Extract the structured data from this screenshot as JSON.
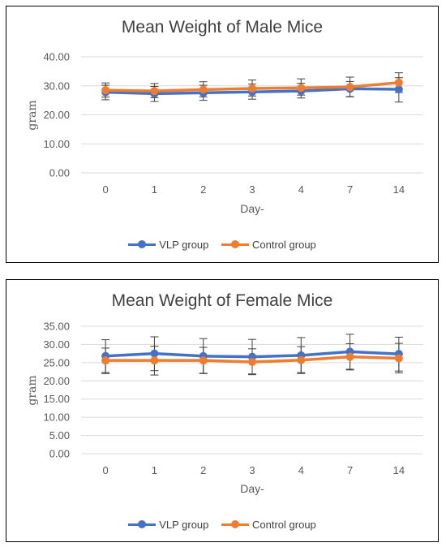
{
  "colors": {
    "vlp": "#4472c4",
    "control": "#ed7d31",
    "grid": "#d9d9d9",
    "text": "#595959",
    "error_bar": "#404040"
  },
  "chart_data": [
    {
      "type": "line",
      "title": "Mean Weight of Male Mice",
      "xlabel": "Day-",
      "ylabel": "gram",
      "categories": [
        "0",
        "1",
        "2",
        "3",
        "4",
        "7",
        "14"
      ],
      "ylim": [
        0,
        40
      ],
      "yticks": [
        "0.00",
        "10.00",
        "20.00",
        "30.00",
        "40.00"
      ],
      "grid": true,
      "legend_position": "bottom",
      "series": [
        {
          "name": "VLP group",
          "color_key": "vlp",
          "values": [
            27.8,
            27.3,
            27.6,
            27.9,
            28.2,
            29.0,
            28.8
          ],
          "err_low": [
            25.2,
            24.6,
            25.0,
            25.4,
            25.8,
            26.2,
            24.4
          ],
          "err_high": [
            30.2,
            29.8,
            30.2,
            30.6,
            30.9,
            31.5,
            32.8
          ]
        },
        {
          "name": "Control group",
          "color_key": "control",
          "values": [
            28.5,
            28.2,
            28.7,
            29.1,
            29.3,
            29.6,
            31.1
          ],
          "err_low": [
            26.1,
            25.9,
            26.2,
            26.5,
            26.8,
            26.3,
            27.7
          ],
          "err_high": [
            31.0,
            30.8,
            31.4,
            32.0,
            32.4,
            33.0,
            34.5
          ]
        }
      ]
    },
    {
      "type": "line",
      "title": "Mean Weight of Female Mice",
      "xlabel": "Day-",
      "ylabel": "gram",
      "categories": [
        "0",
        "1",
        "2",
        "3",
        "4",
        "7",
        "14"
      ],
      "ylim": [
        0,
        35
      ],
      "yticks": [
        "0.00",
        "5.00",
        "10.00",
        "15.00",
        "20.00",
        "25.00",
        "30.00",
        "35.00"
      ],
      "grid": true,
      "legend_position": "bottom",
      "series": [
        {
          "name": "VLP group",
          "color_key": "vlp",
          "values": [
            26.8,
            27.5,
            26.8,
            26.6,
            27.0,
            28.0,
            27.4
          ],
          "err_low": [
            22.3,
            22.8,
            22.1,
            21.9,
            22.3,
            23.2,
            22.7
          ],
          "err_high": [
            31.3,
            32.1,
            31.6,
            31.4,
            31.9,
            32.8,
            32.0
          ]
        },
        {
          "name": "Control group",
          "color_key": "control",
          "values": [
            25.6,
            25.6,
            25.6,
            25.2,
            25.7,
            26.6,
            26.2
          ],
          "err_low": [
            22.0,
            21.6,
            22.0,
            21.7,
            22.0,
            23.0,
            22.2
          ],
          "err_high": [
            29.0,
            29.5,
            29.2,
            28.8,
            29.4,
            30.2,
            30.3
          ]
        }
      ]
    }
  ]
}
